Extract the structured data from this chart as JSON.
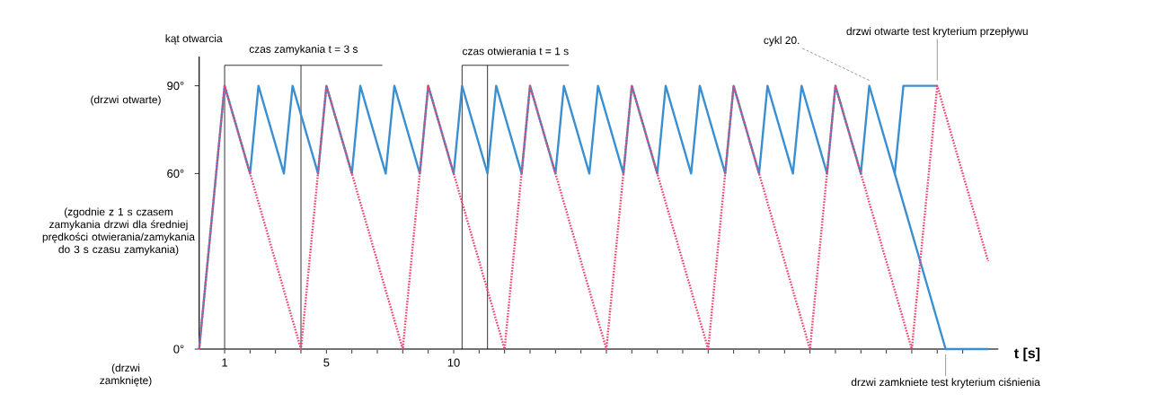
{
  "chart_data": {
    "type": "line",
    "xlabel": "t [s]",
    "ylabel": "kąt otwarcia",
    "xlim": [
      0,
      31.4
    ],
    "ylim": [
      0,
      100
    ],
    "xticks": [
      1,
      {
        "value": 2,
        "label": null
      },
      {
        "value": 3,
        "label": null
      },
      {
        "value": 4,
        "label": null
      },
      5,
      {
        "value": 6,
        "label": null
      },
      {
        "value": 7,
        "label": null
      },
      {
        "value": 8,
        "label": null
      },
      {
        "value": 9,
        "label": null
      },
      10,
      {
        "value": 11,
        "label": null
      },
      {
        "value": 12,
        "label": null
      },
      {
        "value": 13,
        "label": null
      },
      {
        "value": 14,
        "label": null
      },
      {
        "value": 15,
        "label": null
      },
      {
        "value": 16,
        "label": null
      },
      {
        "value": 17,
        "label": null
      },
      {
        "value": 18,
        "label": null
      },
      {
        "value": 19,
        "label": null
      },
      {
        "value": 20,
        "label": null
      },
      {
        "value": 21,
        "label": null
      },
      {
        "value": 22,
        "label": null
      },
      {
        "value": 23,
        "label": null
      },
      {
        "value": 24,
        "label": null
      },
      {
        "value": 25,
        "label": null
      },
      {
        "value": 26,
        "label": null
      },
      {
        "value": 27,
        "label": null
      },
      {
        "value": 28,
        "label": null
      },
      {
        "value": 29,
        "label": null
      },
      {
        "value": 30,
        "label": null
      }
    ],
    "yticks": [
      {
        "value": 0,
        "label": "0°"
      },
      {
        "value": 60,
        "label": "60°"
      },
      {
        "value": 90,
        "label": "90°"
      }
    ],
    "marker": "none",
    "grid": false,
    "series": [
      {
        "color": "#3a8fd0",
        "line_style": "solid",
        "x": [
          0,
          1,
          2,
          2.33,
          3.33,
          3.67,
          4.67,
          5,
          6,
          6.33,
          7.33,
          7.67,
          8.67,
          9,
          10,
          10.33,
          11.33,
          11.67,
          12.67,
          13,
          14,
          14.33,
          15.33,
          15.67,
          16.67,
          17,
          18,
          18.33,
          19.33,
          19.67,
          20.67,
          21,
          22,
          22.33,
          23.33,
          23.67,
          24.67,
          25,
          26,
          26.33,
          27.33,
          29.33,
          31
        ],
        "values": [
          0,
          90,
          60,
          90,
          60,
          90,
          60,
          90,
          60,
          90,
          60,
          90,
          60,
          90,
          60,
          90,
          60,
          90,
          60,
          90,
          60,
          90,
          60,
          90,
          60,
          90,
          60,
          90,
          60,
          90,
          60,
          90,
          60,
          90,
          60,
          90,
          60,
          90,
          60,
          90,
          60,
          0,
          0
        ]
      },
      {
        "color": "#3a8fd0",
        "line_style": "solid",
        "x": [
          27.33,
          27.67,
          29
        ],
        "values": [
          60,
          90,
          90
        ]
      },
      {
        "color": "#f0406a",
        "line_style": "dotted",
        "x": [
          0,
          1,
          4,
          5,
          8,
          9,
          12,
          13,
          16,
          17,
          20,
          21,
          24,
          25,
          28,
          29,
          31
        ],
        "values": [
          0,
          90,
          0,
          90,
          0,
          90,
          0,
          90,
          0,
          90,
          0,
          90,
          0,
          90,
          0,
          90,
          30
        ]
      }
    ],
    "ref_lines": [
      {
        "axis": "x",
        "value": 1
      },
      {
        "axis": "x",
        "value": 4
      },
      {
        "axis": "x",
        "value": 10.33
      },
      {
        "axis": "x",
        "value": 11.33
      }
    ],
    "annotations": [
      "(drzwi otwarte)",
      "(zgodnie z 1 s czasem zamykania drzwi dla średniej prędkości otwierania/zamykania do 3 s czasu zamykania)",
      "(drzwi zamknięte)",
      "czas zamykania t = 3 s",
      "czas otwierania t = 1 s",
      {
        "text": "cykl 20.",
        "x": 26.33,
        "y": 90
      },
      {
        "text": "drzwi otwarte test kryterium przepływu",
        "x": 29,
        "y": 90
      },
      {
        "text": "drzwi zamkniete test kryterium ciśnienia",
        "x": 29.33,
        "y": 0
      }
    ]
  }
}
